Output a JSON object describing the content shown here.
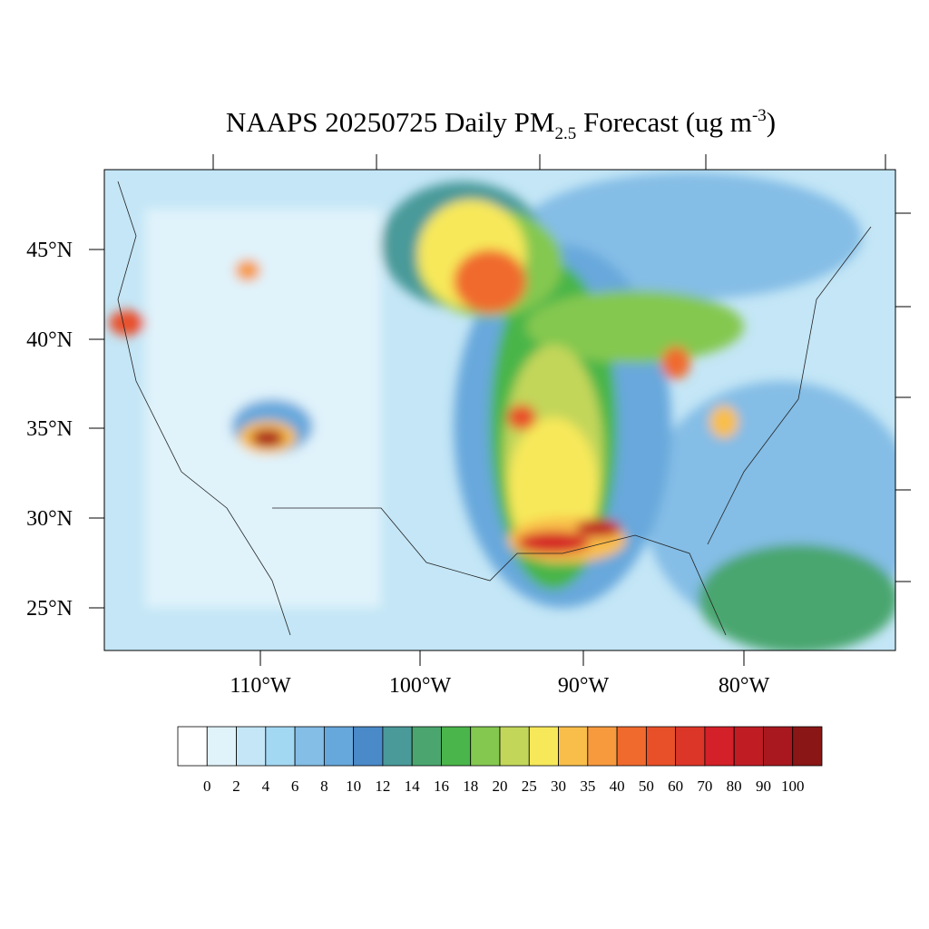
{
  "title": {
    "start": "NAAPS 20250725 Daily PM",
    "subscript": "2.5",
    "middle": " Forecast (ug m",
    "superscript": "-3",
    "end": ")"
  },
  "lat_labels": [
    "45°N",
    "40°N",
    "35°N",
    "30°N",
    "25°N"
  ],
  "lon_labels": [
    "110°W",
    "100°W",
    "90°W",
    "80°W"
  ],
  "colorbar": {
    "levels": [
      0,
      2,
      4,
      6,
      8,
      10,
      12,
      14,
      16,
      18,
      20,
      25,
      30,
      35,
      40,
      50,
      60,
      70,
      80,
      90,
      100
    ],
    "colors": [
      "#ffffff",
      "#e0f3fb",
      "#c4e6f6",
      "#a3d8f3",
      "#84bde6",
      "#67a8dc",
      "#4a8ac8",
      "#4a9a9a",
      "#4aa66e",
      "#4ab54a",
      "#84c850",
      "#c2d65a",
      "#f7e85a",
      "#f9be4a",
      "#f79a3e",
      "#f06a2e",
      "#e8502a",
      "#dc3628",
      "#d42028",
      "#c01c24",
      "#a8181e",
      "#8a1616"
    ]
  }
}
